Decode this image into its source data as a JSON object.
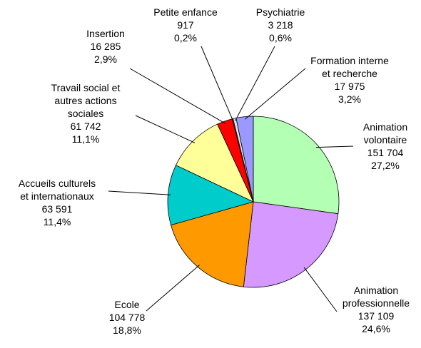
{
  "chart_data": {
    "type": "pie",
    "categories": [
      "Animation\nvolontaire",
      "Animation\nprofessionnelle",
      "Ecole",
      "Accueils culturels\net internationaux",
      "Travail social et\nautres actions\nsociales",
      "Insertion",
      "Petite enfance",
      "Psychiatrie",
      "Formation interne\net recherche"
    ],
    "values": [
      151704,
      137109,
      104778,
      63591,
      61742,
      16285,
      917,
      3218,
      17975
    ],
    "value_labels": [
      "151 704",
      "137 109",
      "104 778",
      "63 591",
      "61 742",
      "16 285",
      "917",
      "3 218",
      "17 975"
    ],
    "percentages": [
      27.2,
      24.6,
      18.8,
      11.4,
      11.1,
      2.9,
      0.2,
      0.6,
      3.2
    ],
    "percentage_labels": [
      "27,2%",
      "24,6%",
      "18,8%",
      "11,4%",
      "11,1%",
      "2,9%",
      "0,2%",
      "0,6%",
      "3,2%"
    ],
    "colors": [
      "#b3ffb3",
      "#d699ff",
      "#ff9900",
      "#00cccc",
      "#ffff99",
      "#ff0000",
      "#333399",
      "#e0e0e0",
      "#9999ff"
    ]
  }
}
